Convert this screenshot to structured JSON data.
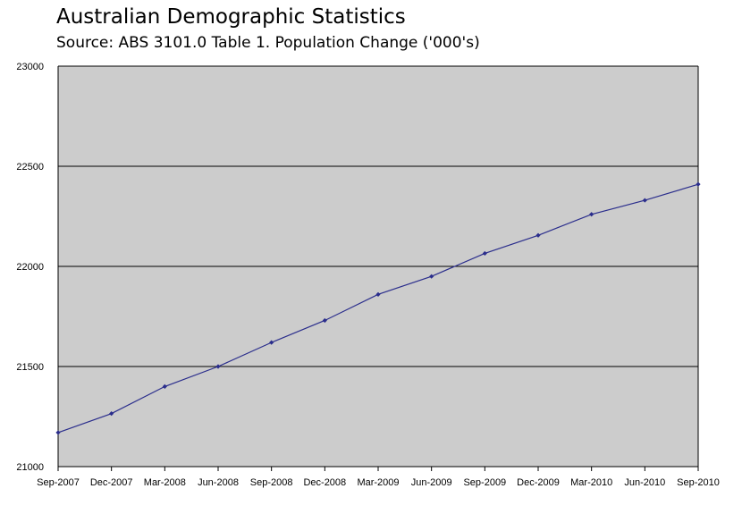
{
  "title": "Australian Demographic Statistics",
  "subtitle": "Source: ABS 3101.0 Table 1. Population Change ('000's)",
  "chart_data": {
    "type": "line",
    "title": "Australian Demographic Statistics",
    "subtitle": "Source: ABS 3101.0 Table 1. Population Change ('000's)",
    "categories": [
      "Sep-2007",
      "Dec-2007",
      "Mar-2008",
      "Jun-2008",
      "Sep-2008",
      "Dec-2008",
      "Mar-2009",
      "Jun-2009",
      "Sep-2009",
      "Dec-2009",
      "Mar-2010",
      "Jun-2010",
      "Sep-2010"
    ],
    "series": [
      {
        "values": [
          21170,
          21265,
          21400,
          21500,
          21620,
          21730,
          21860,
          21950,
          22065,
          22155,
          22260,
          22330,
          22410
        ]
      }
    ],
    "ylim": [
      21000,
      23000
    ],
    "yticks": [
      21000,
      21500,
      22000,
      22500,
      23000
    ],
    "grid": true,
    "colors": {
      "plot_bg": "#cccccc",
      "line": "#2a2d8c",
      "grid": "#000000"
    }
  }
}
